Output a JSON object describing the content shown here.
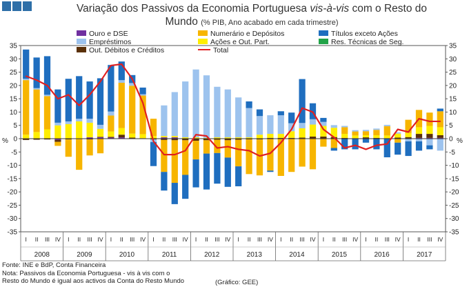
{
  "title": {
    "line1_pre": "Variação dos Passivos da Economia Portuguesa ",
    "line1_italic": "vis-à-vis",
    "line1_post": " com o Resto do",
    "line2": "Mundo",
    "subtitle": "(% PIB, Ano acabado em cada trimestre)"
  },
  "footer": {
    "source": "Fonte: INE e BdP, Conta Financeira",
    "note1": "Nota: Passivos da Economia Portuguesa - vis à vis com o",
    "note2": "Resto do Mundo é igual aos activos da Conta do Resto Mundo",
    "credit": "(Gráfico: GEE)"
  },
  "colors": {
    "ouro": "#7030a0",
    "numerario": "#f7b500",
    "titulos": "#1f6ebf",
    "emprestimos": "#9dc3ee",
    "acoes": "#ffee00",
    "tecnicas": "#22a348",
    "outdebitos": "#5a3008",
    "total": "#e02020"
  },
  "chart_data": {
    "type": "bar",
    "stacked": true,
    "title": "Variação dos Passivos da Economia Portuguesa vis-à-vis com o Resto do Mundo",
    "ylabel": "%",
    "ylabel_right": "%",
    "ylim": [
      -35,
      35
    ],
    "yticks": [
      35,
      30,
      25,
      20,
      15,
      10,
      5,
      0,
      -5,
      -10,
      -15,
      -20,
      -25,
      -30,
      -35
    ],
    "ytick_labels": [
      "35",
      "30",
      "25",
      "20",
      "15",
      "10",
      "5",
      "0",
      "-5",
      "-10",
      "-15",
      "-20",
      "-25",
      "-30",
      "-35"
    ],
    "quarter_labels": [
      "I",
      "II",
      "III",
      "IV"
    ],
    "years": [
      "2008",
      "2009",
      "2010",
      "2011",
      "2012",
      "2013",
      "2014",
      "2015",
      "2016",
      "2017"
    ],
    "grid": false,
    "series": [
      {
        "key": "ouro",
        "name": "Ouro e DSE",
        "values": [
          0,
          0,
          0,
          -0.5,
          0,
          0,
          0.5,
          0.5,
          0.4,
          0.5,
          0,
          0,
          0,
          0.5,
          0.5,
          0,
          0,
          0,
          0,
          0,
          0,
          0,
          0,
          0,
          0,
          0,
          0,
          0,
          0,
          0,
          0,
          0,
          0,
          0,
          0,
          0,
          0,
          0.3,
          0.3,
          0.3
        ]
      },
      {
        "key": "tecnicas",
        "name": "Res. Técnicas de Seg.",
        "values": [
          0,
          0,
          0,
          0,
          0,
          0,
          0,
          0,
          0,
          0,
          0,
          0,
          0,
          0,
          0,
          0,
          0,
          0,
          0,
          0,
          0,
          0,
          0,
          0,
          0,
          0,
          0,
          0,
          0,
          0,
          0,
          0,
          0,
          0,
          0,
          0,
          0,
          0,
          0,
          0
        ]
      },
      {
        "key": "outdebitos",
        "name": "Out. Débitos e Créditos",
        "values": [
          -0.5,
          -0.4,
          -0.3,
          -0.7,
          -0.3,
          -0.2,
          -0.3,
          0.2,
          0.3,
          1.0,
          0.4,
          0.2,
          -0.3,
          -0.5,
          -0.6,
          -0.6,
          -0.8,
          -0.6,
          -0.4,
          -0.6,
          -0.4,
          -0.3,
          -0.3,
          0.3,
          0.3,
          0.3,
          0.4,
          0.8,
          0.8,
          0.6,
          0.3,
          0.2,
          0.5,
          0.3,
          0.2,
          0.4,
          0.6,
          1.5,
          1.5,
          1.0
        ]
      },
      {
        "key": "acoes",
        "name": "Ações e Out. Part.",
        "values": [
          1.5,
          2.5,
          3.5,
          5.0,
          5.5,
          6.5,
          5.5,
          3.0,
          2.0,
          2.5,
          1.5,
          1.5,
          1.0,
          0.5,
          0.5,
          0.5,
          0.5,
          0.3,
          0.5,
          0.5,
          0.5,
          0.5,
          1.5,
          1.5,
          1.5,
          2.5,
          3.5,
          4.5,
          4.0,
          3.5,
          1.5,
          1.0,
          0.8,
          1.0,
          1.0,
          1.5,
          1.5,
          2.5,
          3.0,
          3.0
        ]
      },
      {
        "key": "numerario",
        "name": "Numerário e Depósitos",
        "values": [
          20.5,
          16.0,
          12.5,
          -1.5,
          -6.5,
          -11.5,
          -6.0,
          -5.5,
          6.0,
          17.0,
          18.0,
          14.5,
          6.5,
          -12.0,
          -16.0,
          -13.0,
          -7.0,
          -5.0,
          -5.0,
          -6.5,
          -10.0,
          -13.0,
          -13.5,
          -12.0,
          -14.0,
          -12.5,
          -10.5,
          -11.5,
          -3.0,
          -3.5,
          2.5,
          1.5,
          1.5,
          2.0,
          3.5,
          -1.5,
          5.0,
          6.5,
          5.0,
          6.0
        ]
      },
      {
        "key": "emprestimos",
        "name": "Empréstimos",
        "values": [
          0.5,
          0.5,
          0.5,
          1.0,
          1.0,
          1.0,
          1.5,
          1.5,
          1.5,
          1.0,
          1.0,
          0.5,
          -1.0,
          11.5,
          16.5,
          21.0,
          25.5,
          23.5,
          19.0,
          18.0,
          15.0,
          11.0,
          7.0,
          7.0,
          7.0,
          3.0,
          2.0,
          2.0,
          1.5,
          1.0,
          0.5,
          0.5,
          0.5,
          0.5,
          0.5,
          0.5,
          -1.0,
          -1.0,
          -2.5,
          -4.5
        ]
      },
      {
        "key": "titulos",
        "name": "Títulos exceto Ações",
        "values": [
          11.0,
          11.5,
          14.5,
          12.5,
          16.0,
          16.0,
          14.0,
          17.5,
          17.5,
          7.0,
          3.0,
          2.5,
          -9.0,
          -7.0,
          -8.0,
          -9.0,
          -10.5,
          -13.5,
          -11.5,
          -11.0,
          -7.5,
          2.5,
          2.5,
          -0.5,
          1.5,
          4.0,
          16.5,
          6.0,
          1.5,
          -1.0,
          -4.0,
          -4.0,
          -1.5,
          -4.0,
          -7.0,
          -4.5,
          -5.5,
          -3.5,
          -1.5,
          1.0
        ]
      },
      {
        "key": "total",
        "name": "Total",
        "kind": "line",
        "values": [
          23.5,
          22.0,
          20.0,
          15.0,
          16.5,
          12.5,
          16.5,
          21.5,
          27.5,
          28.0,
          22.5,
          13.5,
          -1.0,
          -6.0,
          -6.0,
          -4.5,
          1.5,
          1.0,
          -3.5,
          -3.0,
          -4.0,
          -4.5,
          -6.5,
          -5.5,
          -1.5,
          3.5,
          11.5,
          10.0,
          3.5,
          0.5,
          -3.5,
          -2.5,
          -4.0,
          -2.5,
          -2.0,
          3.5,
          2.5,
          7.5,
          6.5,
          6.5
        ]
      }
    ]
  }
}
